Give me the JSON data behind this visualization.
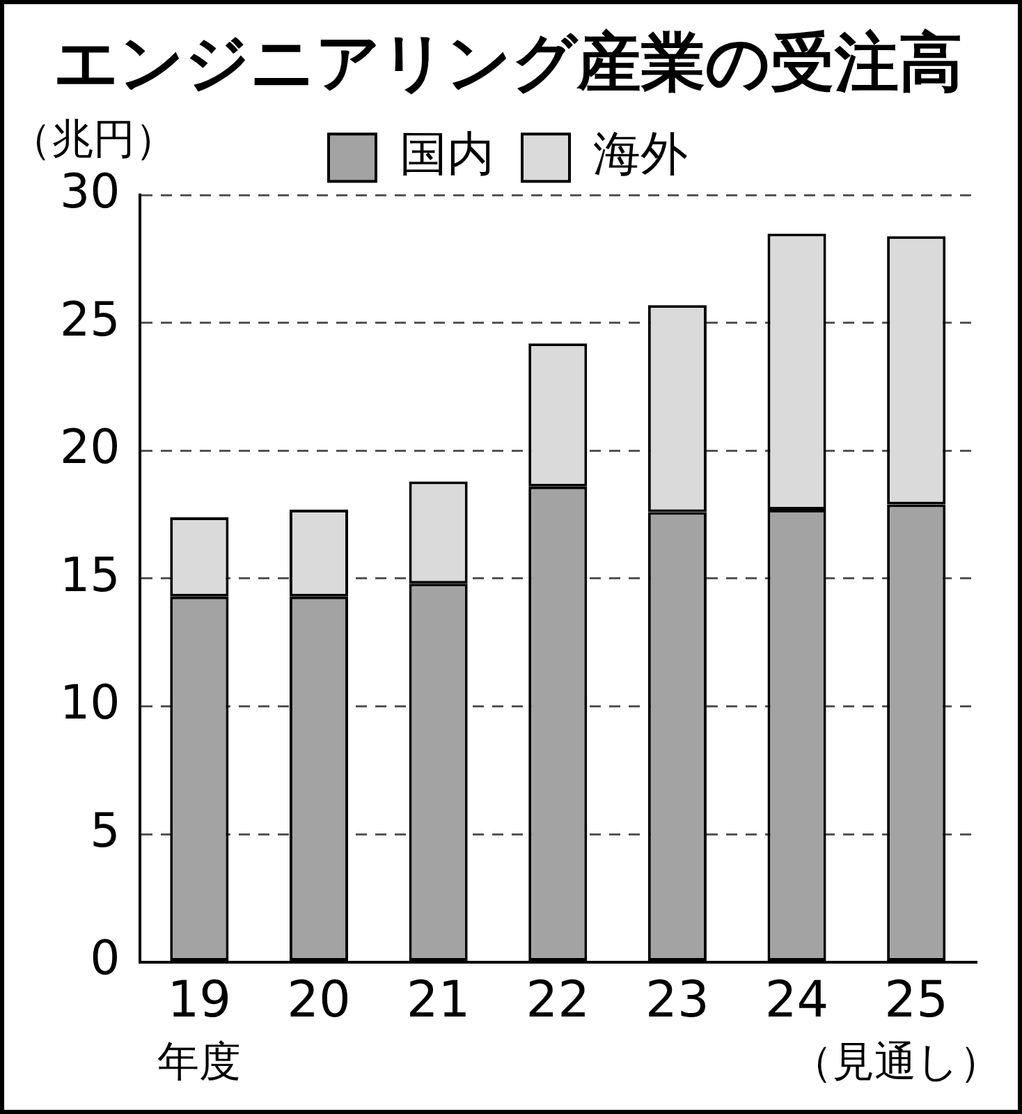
{
  "chart_data": {
    "type": "bar",
    "title": "エンジニアリング産業の受注高",
    "ylabel": "（兆円）",
    "xlabel": "年度",
    "categories": [
      "19",
      "20",
      "21",
      "22",
      "23",
      "24",
      "25"
    ],
    "series": [
      {
        "name": "国内",
        "color": "#a3a3a3",
        "values": [
          14.3,
          14.3,
          14.8,
          18.6,
          17.6,
          17.7,
          17.9
        ]
      },
      {
        "name": "海外",
        "color": "#dadada",
        "values": [
          3.1,
          3.4,
          4.0,
          5.6,
          8.1,
          10.8,
          10.5
        ]
      }
    ],
    "stacked": true,
    "ylim": [
      0,
      30
    ],
    "yticks": [
      0,
      5,
      10,
      15,
      20,
      25,
      30
    ],
    "grid": "y",
    "legend": "top",
    "annotations": [
      "（見通し）"
    ]
  }
}
